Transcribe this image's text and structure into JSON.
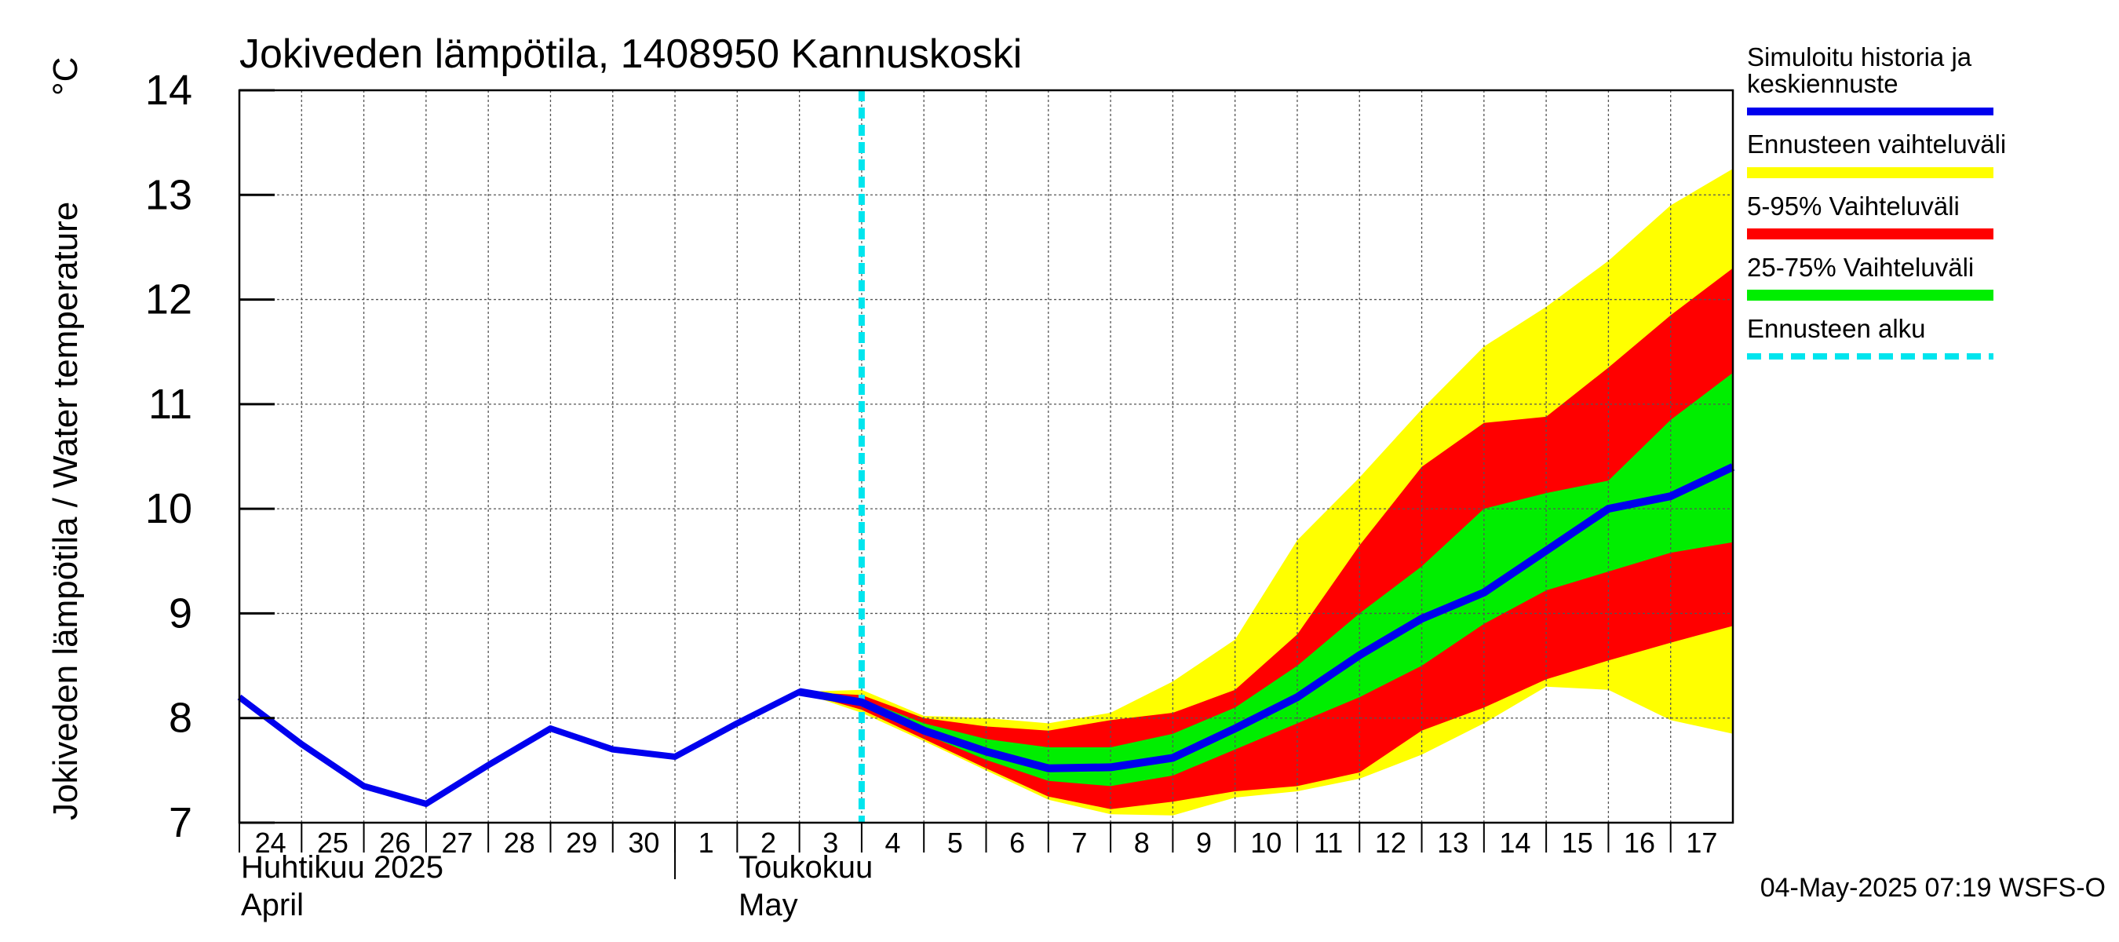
{
  "chart_data": {
    "type": "area",
    "title": "Jokiveden lämpötila, 1408950 Kannuskoski",
    "ylabel": "Jokiveden lämpötila / Water temperature",
    "yunit": "°C",
    "ylim": [
      7,
      14
    ],
    "yticks": [
      "7",
      "8",
      "9",
      "10",
      "11",
      "12",
      "13",
      "14"
    ],
    "xlim": [
      "2025-04-24",
      "2025-05-18"
    ],
    "xtick_labels": [
      "24",
      "25",
      "26",
      "27",
      "28",
      "29",
      "30",
      "1",
      "2",
      "3",
      "4",
      "5",
      "6",
      "7",
      "8",
      "9",
      "10",
      "11",
      "12",
      "13",
      "14",
      "15",
      "16",
      "17"
    ],
    "month_labels": [
      {
        "fi": "Huhtikuu  2025",
        "en": "April"
      },
      {
        "fi": "Toukokuu",
        "en": "May"
      }
    ],
    "grid": true,
    "forecast_start": "2025-05-04",
    "history": {
      "name": "Simuloitu historia ja keskiennuste",
      "x": [
        "2025-04-24",
        "2025-04-25",
        "2025-04-26",
        "2025-04-27",
        "2025-04-28",
        "2025-04-29",
        "2025-04-30",
        "2025-05-01",
        "2025-05-02",
        "2025-05-03",
        "2025-05-04"
      ],
      "y": [
        8.2,
        7.75,
        7.35,
        7.18,
        7.55,
        7.9,
        7.7,
        7.63,
        7.95,
        8.25,
        8.15
      ]
    },
    "forecast": {
      "x": [
        "2025-05-03",
        "2025-05-04",
        "2025-05-05",
        "2025-05-06",
        "2025-05-07",
        "2025-05-08",
        "2025-05-09",
        "2025-05-10",
        "2025-05-11",
        "2025-05-12",
        "2025-05-13",
        "2025-05-14",
        "2025-05-15",
        "2025-05-16",
        "2025-05-17",
        "2025-05-18"
      ],
      "median": [
        8.25,
        8.15,
        7.88,
        7.68,
        7.52,
        7.53,
        7.62,
        7.9,
        8.2,
        8.6,
        8.95,
        9.2,
        9.6,
        10.0,
        10.12,
        10.4
      ],
      "p25": [
        8.25,
        8.12,
        7.85,
        7.6,
        7.4,
        7.35,
        7.45,
        7.7,
        7.95,
        8.2,
        8.5,
        8.9,
        9.22,
        9.4,
        9.58,
        9.68
      ],
      "p75": [
        8.25,
        8.18,
        7.95,
        7.8,
        7.72,
        7.72,
        7.85,
        8.1,
        8.5,
        9.0,
        9.45,
        10.0,
        10.15,
        10.27,
        10.85,
        11.3
      ],
      "p5": [
        8.25,
        8.08,
        7.8,
        7.52,
        7.25,
        7.13,
        7.2,
        7.3,
        7.35,
        7.48,
        7.88,
        8.1,
        8.37,
        8.55,
        8.72,
        8.88
      ],
      "p95": [
        8.25,
        8.22,
        8.0,
        7.92,
        7.88,
        7.98,
        8.05,
        8.27,
        8.8,
        9.65,
        10.4,
        10.82,
        10.88,
        11.35,
        11.85,
        12.3
      ],
      "min": [
        8.25,
        8.05,
        7.78,
        7.5,
        7.22,
        7.08,
        7.07,
        7.24,
        7.3,
        7.42,
        7.65,
        7.95,
        8.3,
        8.27,
        7.98,
        7.85
      ],
      "max": [
        8.25,
        8.27,
        8.02,
        8.0,
        7.95,
        8.05,
        8.35,
        8.75,
        9.7,
        10.3,
        10.95,
        11.55,
        11.93,
        12.37,
        12.9,
        13.25
      ]
    },
    "legend": [
      {
        "label": "Simuloitu historia ja keskiennuste",
        "color": "#0000ee"
      },
      {
        "label": "Ennusteen vaihteluväli",
        "color": "#ffff00"
      },
      {
        "label": "5-95% Vaihteluväli",
        "color": "#ff0000"
      },
      {
        "label": "25-75% Vaihteluväli",
        "color": "#00ee00"
      },
      {
        "label": "Ennusteen alku",
        "color": "#00e5ee"
      }
    ],
    "legend_position": "right",
    "timestamp": "04-May-2025 07:19 WSFS-O"
  }
}
